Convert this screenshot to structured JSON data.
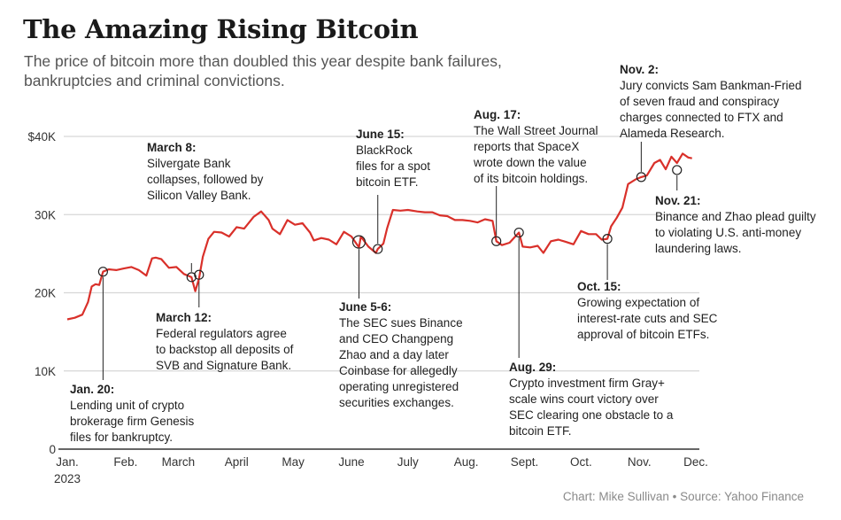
{
  "title": "The Amazing Rising Bitcoin",
  "subtitle": "The price of bitcoin more than doubled this year despite bank failures, bankruptcies and criminal convictions.",
  "credit": "Chart: Mike Sullivan • Source: Yahoo Finance",
  "colors": {
    "line": "#d9302a",
    "grid": "#d6d6d6",
    "axis": "#333333",
    "text": "#1f1f1f"
  },
  "chart_data": {
    "type": "line",
    "title": "The Amazing Rising Bitcoin",
    "xlabel": "",
    "ylabel": "",
    "ylim": [
      0,
      40000
    ],
    "xlim": [
      "2023-01-01",
      "2023-12-01"
    ],
    "grid": true,
    "y_ticks": [
      {
        "value": 0,
        "label": "0"
      },
      {
        "value": 10000,
        "label": "10K"
      },
      {
        "value": 20000,
        "label": "20K"
      },
      {
        "value": 30000,
        "label": "30K"
      },
      {
        "value": 40000,
        "label": "$40K"
      }
    ],
    "x_ticks": [
      {
        "date": "2023-01-01",
        "label": "Jan."
      },
      {
        "date": "2023-02-01",
        "label": "Feb."
      },
      {
        "date": "2023-03-01",
        "label": "March"
      },
      {
        "date": "2023-04-01",
        "label": "April"
      },
      {
        "date": "2023-05-01",
        "label": "May"
      },
      {
        "date": "2023-06-01",
        "label": "June"
      },
      {
        "date": "2023-07-01",
        "label": "July"
      },
      {
        "date": "2023-08-01",
        "label": "Aug."
      },
      {
        "date": "2023-09-01",
        "label": "Sept."
      },
      {
        "date": "2023-10-01",
        "label": "Oct."
      },
      {
        "date": "2023-11-01",
        "label": "Nov."
      },
      {
        "date": "2023-12-01",
        "label": "Dec."
      }
    ],
    "x_year_label": "2023",
    "series": [
      {
        "x": [
          "2023-01-01",
          "2023-01-05",
          "2023-01-09",
          "2023-01-12",
          "2023-01-14",
          "2023-01-16",
          "2023-01-18",
          "2023-01-20",
          "2023-01-23",
          "2023-01-27",
          "2023-01-31",
          "2023-02-04",
          "2023-02-08",
          "2023-02-12",
          "2023-02-15",
          "2023-02-17",
          "2023-02-20",
          "2023-02-24",
          "2023-02-28",
          "2023-03-04",
          "2023-03-08",
          "2023-03-10",
          "2023-03-12",
          "2023-03-14",
          "2023-03-17",
          "2023-03-20",
          "2023-03-24",
          "2023-03-28",
          "2023-04-01",
          "2023-04-05",
          "2023-04-10",
          "2023-04-14",
          "2023-04-18",
          "2023-04-20",
          "2023-04-24",
          "2023-04-28",
          "2023-05-02",
          "2023-05-06",
          "2023-05-10",
          "2023-05-12",
          "2023-05-16",
          "2023-05-20",
          "2023-05-24",
          "2023-05-28",
          "2023-06-01",
          "2023-06-05",
          "2023-06-06",
          "2023-06-10",
          "2023-06-14",
          "2023-06-15",
          "2023-06-18",
          "2023-06-20",
          "2023-06-23",
          "2023-06-27",
          "2023-07-01",
          "2023-07-06",
          "2023-07-10",
          "2023-07-14",
          "2023-07-18",
          "2023-07-22",
          "2023-07-26",
          "2023-07-30",
          "2023-08-03",
          "2023-08-07",
          "2023-08-11",
          "2023-08-15",
          "2023-08-17",
          "2023-08-20",
          "2023-08-24",
          "2023-08-29",
          "2023-08-31",
          "2023-09-04",
          "2023-09-08",
          "2023-09-11",
          "2023-09-15",
          "2023-09-19",
          "2023-09-23",
          "2023-09-27",
          "2023-10-01",
          "2023-10-05",
          "2023-10-09",
          "2023-10-12",
          "2023-10-15",
          "2023-10-17",
          "2023-10-20",
          "2023-10-23",
          "2023-10-26",
          "2023-10-30",
          "2023-11-02",
          "2023-11-05",
          "2023-11-09",
          "2023-11-12",
          "2023-11-15",
          "2023-11-18",
          "2023-11-21",
          "2023-11-24",
          "2023-11-27",
          "2023-11-29"
        ],
        "values": [
          16600,
          16800,
          17200,
          18800,
          20800,
          21100,
          21000,
          22700,
          23000,
          22900,
          23100,
          23300,
          22900,
          22200,
          24400,
          24500,
          24300,
          23200,
          23300,
          22400,
          22000,
          20200,
          21800,
          24600,
          26900,
          27800,
          27700,
          27200,
          28400,
          28200,
          29700,
          30400,
          29300,
          28200,
          27500,
          29300,
          28700,
          28900,
          27700,
          26700,
          27000,
          26800,
          26200,
          27800,
          27200,
          25800,
          27200,
          25900,
          25100,
          25600,
          26300,
          28300,
          30600,
          30500,
          30600,
          30400,
          30300,
          30300,
          29900,
          29800,
          29300,
          29300,
          29200,
          29000,
          29400,
          29200,
          26600,
          26100,
          26400,
          27700,
          25900,
          25800,
          26000,
          25100,
          26600,
          26800,
          26500,
          26200,
          27900,
          27500,
          27500,
          26800,
          26900,
          28500,
          29600,
          30900,
          33900,
          34500,
          34800,
          35000,
          36600,
          37000,
          35800,
          37400,
          36600,
          37800,
          37300,
          37200
        ]
      }
    ],
    "annotations": [
      {
        "date": "Jan. 20:",
        "text": "Lending unit of crypto\nbrokerage firm Genesis\nfiles for bankruptcy.",
        "x": "2023-01-20",
        "y": 22700
      },
      {
        "date": "March 8:",
        "text": "Silvergate Bank\ncollapses, followed by\nSilicon Valley Bank.",
        "x": "2023-03-08",
        "y": 22000
      },
      {
        "date": "March 12:",
        "text": "Federal regulators agree\nto backstop all deposits of\nSVB and Signature Bank.",
        "x": "2023-03-12",
        "y": 22300
      },
      {
        "date": "June 5-6:",
        "text": "The SEC sues Binance\nand CEO Changpeng\nZhao and a day later\nCoinbase for allegedly\noperating unregistered\nsecurities exchanges.",
        "x": "2023-06-05",
        "y": 26500
      },
      {
        "date": "June 15:",
        "text": "BlackRock\nfiles for a spot\nbitcoin ETF.",
        "x": "2023-06-15",
        "y": 25600
      },
      {
        "date": "Aug. 17:",
        "text": "The Wall Street Journal\nreports that SpaceX\nwrote down the value\nof its bitcoin holdings.",
        "x": "2023-08-17",
        "y": 26600
      },
      {
        "date": "Aug. 29:",
        "text": "Crypto investment firm Gray+\nscale wins court victory over\nSEC clearing one obstacle to a\nbitcoin ETF.",
        "x": "2023-08-29",
        "y": 27700
      },
      {
        "date": "Oct. 15:",
        "text": "Growing expectation of\ninterest-rate cuts and SEC\napproval of bitcoin ETFs.",
        "x": "2023-10-15",
        "y": 26900
      },
      {
        "date": "Nov. 2:",
        "text": "Jury convicts Sam Bankman-Fried\nof seven fraud and conspiracy\ncharges connected to FTX and\nAlameda Research.",
        "x": "2023-11-02",
        "y": 34800
      },
      {
        "date": "Nov. 21:",
        "text": "Binance and Zhao plead guilty\nto violating U.S. anti-money\nlaundering laws.",
        "x": "2023-11-21",
        "y": 35700
      }
    ]
  }
}
